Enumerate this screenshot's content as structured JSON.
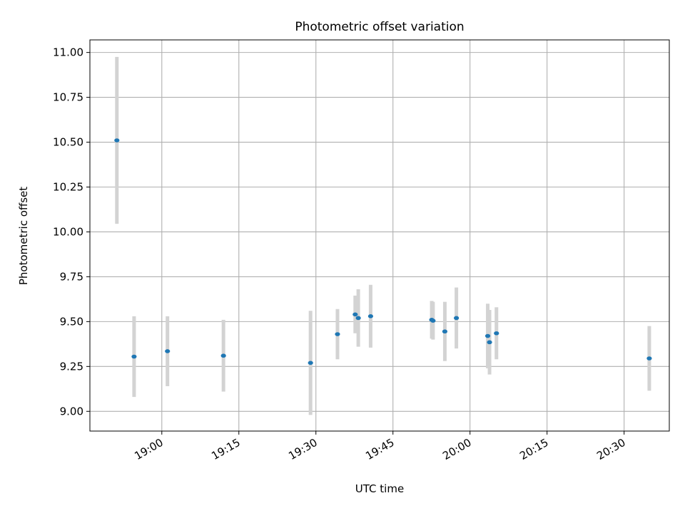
{
  "chart_data": {
    "type": "scatter",
    "title": "Photometric offset variation",
    "xlabel": "UTC time",
    "ylabel": "Photometric offset",
    "ylim": [
      8.89,
      11.07
    ],
    "xlim_minutes": [
      1126.0,
      1238.8
    ],
    "grid": true,
    "colors": {
      "point": "#1f77b4",
      "errorbar": "#d3d3d3",
      "grid": "#b0b0b0",
      "axis": "#000000"
    },
    "x_ticks": [
      {
        "label": "19:00",
        "minutes": 1140
      },
      {
        "label": "19:15",
        "minutes": 1155
      },
      {
        "label": "19:30",
        "minutes": 1170
      },
      {
        "label": "19:45",
        "minutes": 1185
      },
      {
        "label": "20:00",
        "minutes": 1200
      },
      {
        "label": "20:15",
        "minutes": 1215
      },
      {
        "label": "20:30",
        "minutes": 1230
      }
    ],
    "y_ticks": [
      {
        "label": "9.00",
        "value": 9.0
      },
      {
        "label": "9.25",
        "value": 9.25
      },
      {
        "label": "9.50",
        "value": 9.5
      },
      {
        "label": "9.75",
        "value": 9.75
      },
      {
        "label": "10.00",
        "value": 10.0
      },
      {
        "label": "10.25",
        "value": 10.25
      },
      {
        "label": "10.50",
        "value": 10.5
      },
      {
        "label": "10.75",
        "value": 10.75
      },
      {
        "label": "11.00",
        "value": 11.0
      }
    ],
    "points": [
      {
        "t": 1131.25,
        "y": 10.51,
        "err": 0.465
      },
      {
        "t": 1134.6,
        "y": 9.305,
        "err": 0.225
      },
      {
        "t": 1141.1,
        "y": 9.335,
        "err": 0.195
      },
      {
        "t": 1152.0,
        "y": 9.31,
        "err": 0.2
      },
      {
        "t": 1168.95,
        "y": 9.27,
        "err": 0.29
      },
      {
        "t": 1174.2,
        "y": 9.43,
        "err": 0.14
      },
      {
        "t": 1177.65,
        "y": 9.54,
        "err": 0.105
      },
      {
        "t": 1178.25,
        "y": 9.52,
        "err": 0.16
      },
      {
        "t": 1180.65,
        "y": 9.53,
        "err": 0.175
      },
      {
        "t": 1192.55,
        "y": 9.51,
        "err": 0.105
      },
      {
        "t": 1192.8,
        "y": 9.505,
        "err": 0.105
      },
      {
        "t": 1195.1,
        "y": 9.445,
        "err": 0.165
      },
      {
        "t": 1197.35,
        "y": 9.52,
        "err": 0.17
      },
      {
        "t": 1203.45,
        "y": 9.42,
        "err": 0.18
      },
      {
        "t": 1203.8,
        "y": 9.385,
        "err": 0.18
      },
      {
        "t": 1205.15,
        "y": 9.435,
        "err": 0.145
      },
      {
        "t": 1234.9,
        "y": 9.295,
        "err": 0.18
      }
    ]
  }
}
